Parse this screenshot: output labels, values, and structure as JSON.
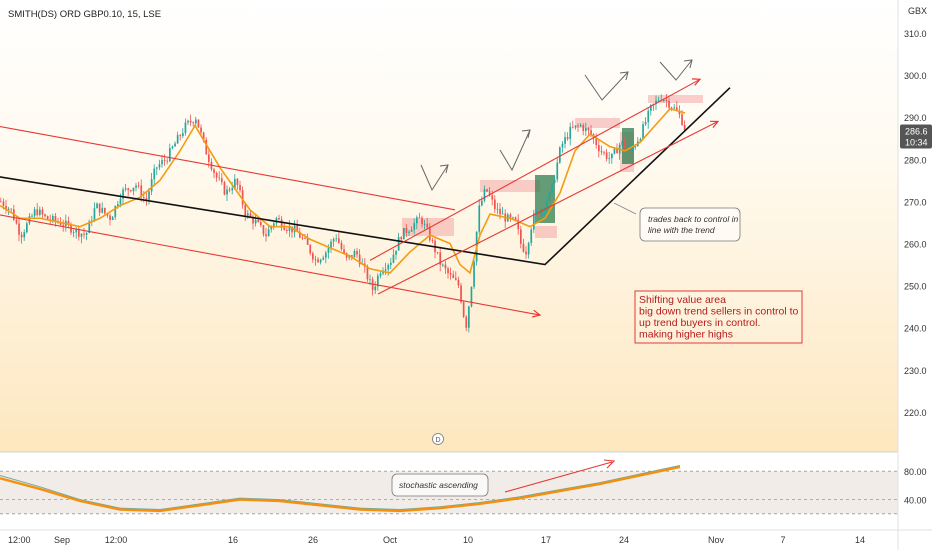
{
  "chart_data": {
    "type": "candlestick",
    "title": "SMITH(DS) ORD GBP0.10, 15, LSE",
    "currency_label": "GBX",
    "y_ticks": [
      "310.0",
      "300.0",
      "290.0",
      "280.0",
      "270.0",
      "260.0",
      "250.0",
      "240.0",
      "230.0",
      "220.0"
    ],
    "y_tick_values": [
      310,
      300,
      290,
      280,
      270,
      260,
      250,
      240,
      230,
      220
    ],
    "ylim": [
      212,
      320
    ],
    "x_ticks": [
      "12:00",
      "Sep",
      "12:00",
      "16",
      "26",
      "Oct",
      "10",
      "17",
      "24",
      "Nov",
      "7",
      "14"
    ],
    "last_price": "286.6",
    "countdown": "10:34",
    "price_path": [
      [
        0,
        270
      ],
      [
        10,
        268
      ],
      [
        20,
        262
      ],
      [
        35,
        268
      ],
      [
        45,
        266
      ],
      [
        60,
        265
      ],
      [
        75,
        263
      ],
      [
        85,
        262
      ],
      [
        95,
        269
      ],
      [
        110,
        266
      ],
      [
        120,
        272
      ],
      [
        135,
        274
      ],
      [
        145,
        270
      ],
      [
        155,
        278
      ],
      [
        165,
        280
      ],
      [
        175,
        284
      ],
      [
        185,
        288
      ],
      [
        195,
        290
      ],
      [
        205,
        282
      ],
      [
        215,
        276
      ],
      [
        225,
        272
      ],
      [
        235,
        275
      ],
      [
        245,
        267
      ],
      [
        255,
        265
      ],
      [
        265,
        262
      ],
      [
        275,
        266
      ],
      [
        285,
        264
      ],
      [
        295,
        263
      ],
      [
        305,
        260
      ],
      [
        315,
        256
      ],
      [
        325,
        258
      ],
      [
        335,
        262
      ],
      [
        345,
        256
      ],
      [
        355,
        258
      ],
      [
        365,
        253
      ],
      [
        372,
        249
      ],
      [
        380,
        254
      ],
      [
        390,
        256
      ],
      [
        400,
        262
      ],
      [
        410,
        264
      ],
      [
        420,
        266
      ],
      [
        430,
        261
      ],
      [
        440,
        255
      ],
      [
        450,
        252
      ],
      [
        458,
        250
      ],
      [
        465,
        240
      ],
      [
        470,
        249
      ],
      [
        478,
        268
      ],
      [
        485,
        273
      ],
      [
        495,
        268
      ],
      [
        505,
        266
      ],
      [
        515,
        265
      ],
      [
        520,
        260
      ],
      [
        525,
        258
      ],
      [
        532,
        266
      ],
      [
        540,
        268
      ],
      [
        550,
        272
      ],
      [
        560,
        283
      ],
      [
        570,
        287
      ],
      [
        580,
        288
      ],
      [
        590,
        286
      ],
      [
        600,
        282
      ],
      [
        610,
        280
      ],
      [
        620,
        284
      ],
      [
        630,
        282
      ],
      [
        640,
        286
      ],
      [
        650,
        292
      ],
      [
        660,
        295
      ],
      [
        670,
        293
      ],
      [
        680,
        290
      ],
      [
        685,
        286.6
      ]
    ],
    "sma_path": [
      [
        0,
        269
      ],
      [
        20,
        266
      ],
      [
        40,
        266
      ],
      [
        60,
        265
      ],
      [
        80,
        264
      ],
      [
        100,
        266
      ],
      [
        120,
        269
      ],
      [
        140,
        271
      ],
      [
        160,
        275
      ],
      [
        180,
        282
      ],
      [
        195,
        288
      ],
      [
        205,
        284
      ],
      [
        220,
        278
      ],
      [
        235,
        273
      ],
      [
        250,
        268
      ],
      [
        270,
        264
      ],
      [
        290,
        264
      ],
      [
        310,
        261
      ],
      [
        330,
        259
      ],
      [
        350,
        257
      ],
      [
        370,
        254
      ],
      [
        390,
        253
      ],
      [
        410,
        258
      ],
      [
        430,
        262
      ],
      [
        450,
        260
      ],
      [
        460,
        255
      ],
      [
        470,
        253
      ],
      [
        480,
        262
      ],
      [
        490,
        267
      ],
      [
        510,
        266
      ],
      [
        530,
        264
      ],
      [
        545,
        266
      ],
      [
        560,
        272
      ],
      [
        575,
        282
      ],
      [
        590,
        286
      ],
      [
        610,
        283
      ],
      [
        625,
        282
      ],
      [
        640,
        284
      ],
      [
        655,
        288
      ],
      [
        670,
        292
      ],
      [
        685,
        291
      ]
    ],
    "overlay_lines": {
      "black_trend": [
        [
          -5,
          276
        ],
        [
          545,
          255
        ],
        [
          730,
          297
        ]
      ],
      "red_upper_channel_1": [
        [
          -5,
          288
        ],
        [
          455,
          268
        ]
      ],
      "red_lower_channel_1": [
        [
          -5,
          267
        ],
        [
          540,
          243
        ]
      ],
      "red_upper_channel_2": [
        [
          370,
          256
        ],
        [
          700,
          299
        ]
      ],
      "red_lower_channel_2": [
        [
          378,
          248
        ],
        [
          718,
          289
        ]
      ]
    },
    "stochastic": {
      "name": "stochastic",
      "levels": [
        "80.00",
        "40.00"
      ],
      "level_values": [
        80,
        40
      ],
      "k": [
        [
          0,
          70
        ],
        [
          40,
          55
        ],
        [
          80,
          38
        ],
        [
          120,
          26
        ],
        [
          160,
          24
        ],
        [
          200,
          32
        ],
        [
          240,
          40
        ],
        [
          280,
          38
        ],
        [
          320,
          32
        ],
        [
          360,
          26
        ],
        [
          400,
          24
        ],
        [
          440,
          28
        ],
        [
          480,
          34
        ],
        [
          520,
          42
        ],
        [
          560,
          52
        ],
        [
          600,
          62
        ],
        [
          640,
          74
        ],
        [
          680,
          86
        ]
      ],
      "d": [
        [
          0,
          74
        ],
        [
          40,
          58
        ],
        [
          80,
          40
        ],
        [
          120,
          28
        ],
        [
          160,
          26
        ],
        [
          200,
          34
        ],
        [
          240,
          42
        ],
        [
          280,
          40
        ],
        [
          320,
          34
        ],
        [
          360,
          28
        ],
        [
          400,
          26
        ],
        [
          440,
          30
        ],
        [
          480,
          36
        ],
        [
          520,
          44
        ],
        [
          560,
          54
        ],
        [
          600,
          64
        ],
        [
          640,
          76
        ],
        [
          680,
          88
        ]
      ]
    },
    "annotations": {
      "shifting_box": [
        "Shifting value area",
        "big down trend sellers in control to",
        "up trend buyers in control.",
        "making higher highs"
      ],
      "callout_trades": [
        "trades back to control in",
        "line with the trend"
      ],
      "callout_stoch": "stochastic ascending",
      "event_marker": "D"
    }
  },
  "colors": {
    "background_top": "#ffffff",
    "background_bottom": "#fde7bf",
    "candle_up": "#26a69a",
    "candle_down": "#ef5350",
    "channel_red": "#e53935",
    "trend_black": "#111111",
    "sma_orange": "#f39c12",
    "stoch_k": "#f5900e",
    "stoch_d": "#6ea89a",
    "zone_red": "#f2a6a6",
    "zone_green": "#2f7d4f"
  }
}
